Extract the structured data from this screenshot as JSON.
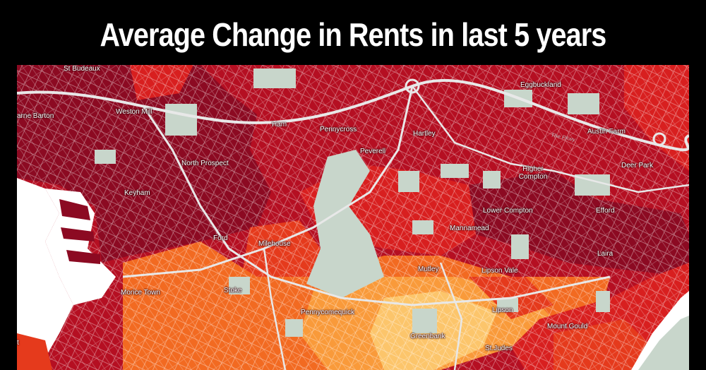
{
  "title": "Average Change in Rents in last 5 years",
  "colors": {
    "darkest": "#8c0a22",
    "dark": "#b50f22",
    "red": "#d81f1f",
    "redorange": "#e53a1c",
    "orange": "#f26a21",
    "lightorange": "#f99a3a",
    "pale": "#fcc56b",
    "green": "#c8d6cb",
    "water": "#ffffff"
  },
  "places": [
    {
      "label": "St Budeaux"
    },
    {
      "label": "arne Barton"
    },
    {
      "label": "Weston Mill"
    },
    {
      "label": "Ham"
    },
    {
      "label": "Pennycross"
    },
    {
      "label": "Hartley"
    },
    {
      "label": "Eggbuckland"
    },
    {
      "label": "Austin Farm"
    },
    {
      "label": "North Prospect"
    },
    {
      "label": "Peverell"
    },
    {
      "label": "Higher Compton"
    },
    {
      "label": "Deer Park"
    },
    {
      "label": "Keyham"
    },
    {
      "label": "Lower Compton"
    },
    {
      "label": "Efford"
    },
    {
      "label": "Mannamead"
    },
    {
      "label": "Ford"
    },
    {
      "label": "Milehouse"
    },
    {
      "label": "Laira"
    },
    {
      "label": "Mutley"
    },
    {
      "label": "Lipson Vale"
    },
    {
      "label": "Morice Town"
    },
    {
      "label": "Stoke"
    },
    {
      "label": "Pennycomequick"
    },
    {
      "label": "Lipson"
    },
    {
      "label": "Mount Gould"
    },
    {
      "label": "Greenbank"
    },
    {
      "label": "St.Judes"
    },
    {
      "label": "t"
    }
  ],
  "road_label": "The Pkwy"
}
